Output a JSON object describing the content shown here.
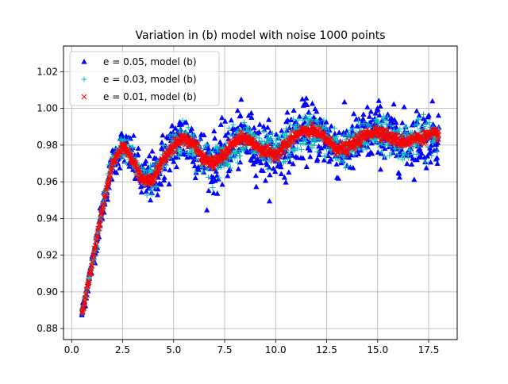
{
  "chart_data": {
    "type": "scatter",
    "title": "Variation in (b) model with noise 1000 points",
    "xlabel": "",
    "ylabel": "",
    "xlim": [
      -0.4,
      18.9
    ],
    "ylim": [
      0.874,
      1.034
    ],
    "xticks": [
      "0.0",
      "2.5",
      "5.0",
      "7.5",
      "10.0",
      "12.5",
      "15.0",
      "17.5"
    ],
    "yticks": [
      "0.88",
      "0.90",
      "0.92",
      "0.94",
      "0.96",
      "0.98",
      "1.00",
      "1.02"
    ],
    "grid": true,
    "legend_position": "top-left",
    "n_points": 1000,
    "x_range": [
      0.5,
      18.0
    ],
    "underlying_curve": {
      "x": [
        0.5,
        1.0,
        1.5,
        2.0,
        2.5,
        3.0,
        3.5,
        4.0,
        4.5,
        5.0,
        5.5,
        6.0,
        6.5,
        7.0,
        7.5,
        8.0,
        8.5,
        9.0,
        9.5,
        10.0,
        10.5,
        11.0,
        11.5,
        12.0,
        12.5,
        13.0,
        13.5,
        14.0,
        14.5,
        15.0,
        15.5,
        16.0,
        16.5,
        17.0,
        17.5,
        18.0
      ],
      "y": [
        0.888,
        0.915,
        0.945,
        0.97,
        0.98,
        0.972,
        0.96,
        0.962,
        0.972,
        0.98,
        0.984,
        0.98,
        0.972,
        0.97,
        0.975,
        0.982,
        0.984,
        0.98,
        0.976,
        0.975,
        0.98,
        0.985,
        0.988,
        0.987,
        0.983,
        0.978,
        0.978,
        0.982,
        0.986,
        0.988,
        0.985,
        0.982,
        0.982,
        0.984,
        0.985,
        0.986
      ]
    },
    "series": [
      {
        "name": "e = 0.05, model (b)",
        "marker": "triangle",
        "color": "#0000ff",
        "noise": 0.05
      },
      {
        "name": "e = 0.03, model (b)",
        "marker": "plus",
        "color": "#00bfbf",
        "noise": 0.03
      },
      {
        "name": "e = 0.01, model (b)",
        "marker": "x",
        "color": "#ff0000",
        "noise": 0.01
      }
    ]
  }
}
